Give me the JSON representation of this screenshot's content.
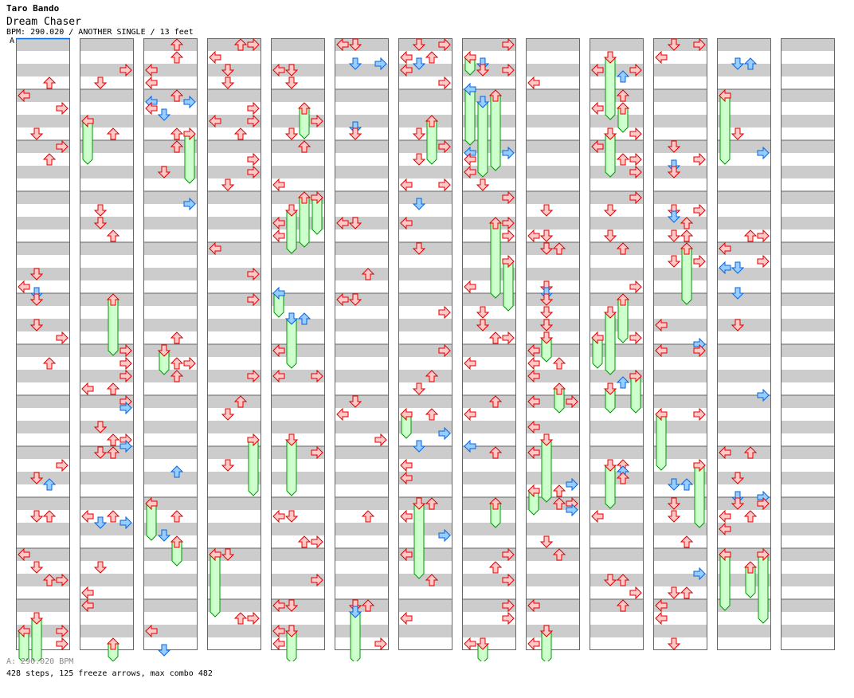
{
  "header": {
    "artist": "Taro Bando",
    "title": "Dream Chaser",
    "info": "BPM: 290.020 / ANOTHER SINGLE / 13 feet",
    "bpm_marker_label": "A"
  },
  "footer": {
    "bpm_line": "A: 290.020 BPM",
    "stats": "428 steps, 125 freeze arrows, max combo 482"
  },
  "colors": {
    "note_fill": "#ffc8c8",
    "note_stroke": "#e00000",
    "offbeat_fill": "#99ccff",
    "offbeat_stroke": "#0066dd",
    "freeze_fill": "#ccffcc",
    "freeze_stroke": "#009900",
    "stripe": "#cccccc"
  },
  "chart_data": {
    "type": "step-chart",
    "columns": 13,
    "measures_per_column": 12,
    "bpm": 290.02,
    "steps": 428,
    "freeze_arrows": 125,
    "max_combo": 482,
    "lanes": [
      "left",
      "down",
      "up",
      "right"
    ]
  }
}
